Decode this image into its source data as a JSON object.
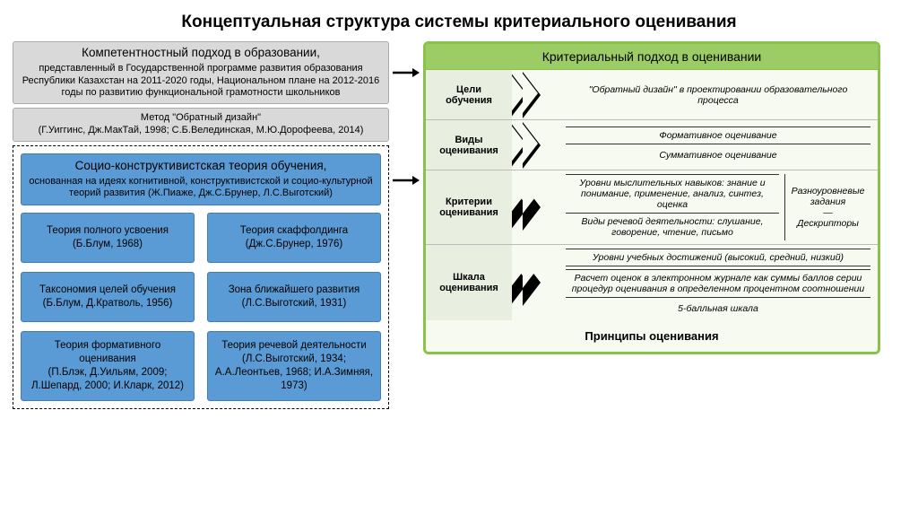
{
  "title": "Концептуальная структура системы критериального оценивания",
  "colors": {
    "gray": "#d9d9d9",
    "blue": "#5b9bd5",
    "green_border": "#8bc34a",
    "green_header": "#9ccc65",
    "green_bg": "#f6faf0"
  },
  "left": {
    "box1": {
      "heading": "Компетентностный подход в образовании,",
      "body": "представленный в Государственной программе развития образования Республики Казахстан на 2011-2020 годы, Национальном плане на 2012-2016 годы по развитию функциональной грамотности школьников"
    },
    "box2": {
      "heading": "Метод \"Обратный дизайн\"",
      "body": "(Г.Уиггинс, Дж.МакТай, 1998; С.Б.Велединская, М.Ю.Дорофеева, 2014)"
    },
    "box3": {
      "heading": "Социо-конструктивистская теория обучения,",
      "body": "основанная на идеях когнитивной, конструктивистской и социо-культурной теорий развития (Ж.Пиаже, Дж.С.Брунер, Л.С.Выготский)"
    },
    "grid": [
      "Теория полного усвоения\n(Б.Блум, 1968)",
      "Теория скаффолдинга\n(Дж.С.Брунер, 1976)",
      "Таксономия целей обучения\n(Б.Блум, Д.Кратволь, 1956)",
      "Зона ближайшего развития\n(Л.С.Выготский, 1931)",
      "Теория формативного оценивания\n(П.Блэк, Д.Уильям, 2009; Л.Шепард, 2000; И.Кларк, 2012)",
      "Теория речевой деятельности\n(Л.С.Выготский, 1934; А.А.Леонтьев, 1968; И.А.Зимняя, 1973)"
    ]
  },
  "right": {
    "header": "Критериальный подход в оценивании",
    "rows": [
      {
        "label": "Цели\nобучения",
        "items": [
          {
            "text": "\"Обратный дизайн\" в проектировании образовательного процесса",
            "style": "plain"
          }
        ]
      },
      {
        "label": "Виды\nоценивания",
        "items": [
          {
            "text": "Формативное оценивание",
            "style": "line"
          },
          {
            "text": "Суммативное оценивание",
            "style": "plain"
          }
        ]
      },
      {
        "label": "Критерии\nоценивания",
        "split": {
          "left": [
            {
              "text": "Уровни мыслительных навыков: знание и понимание, применение, анализ, синтез, оценка",
              "style": "line"
            },
            {
              "text": "Виды речевой деятельности: слушание, говорение, чтение, письмо",
              "style": "plain"
            }
          ],
          "right": "Разноуровневые задания\n—\nДескрипторы"
        }
      },
      {
        "label": "Шкала\nоценивания",
        "items": [
          {
            "text": "Уровни учебных достижений (высокий, средний, низкий)",
            "style": "line"
          },
          {
            "text": "Расчет оценок в электронном журнале как суммы баллов серии процедур оценивания в определенном процентном соотношении",
            "style": "line"
          },
          {
            "text": "5-балльная шкала",
            "style": "plain"
          }
        ]
      }
    ],
    "footer": "Принципы оценивания"
  }
}
